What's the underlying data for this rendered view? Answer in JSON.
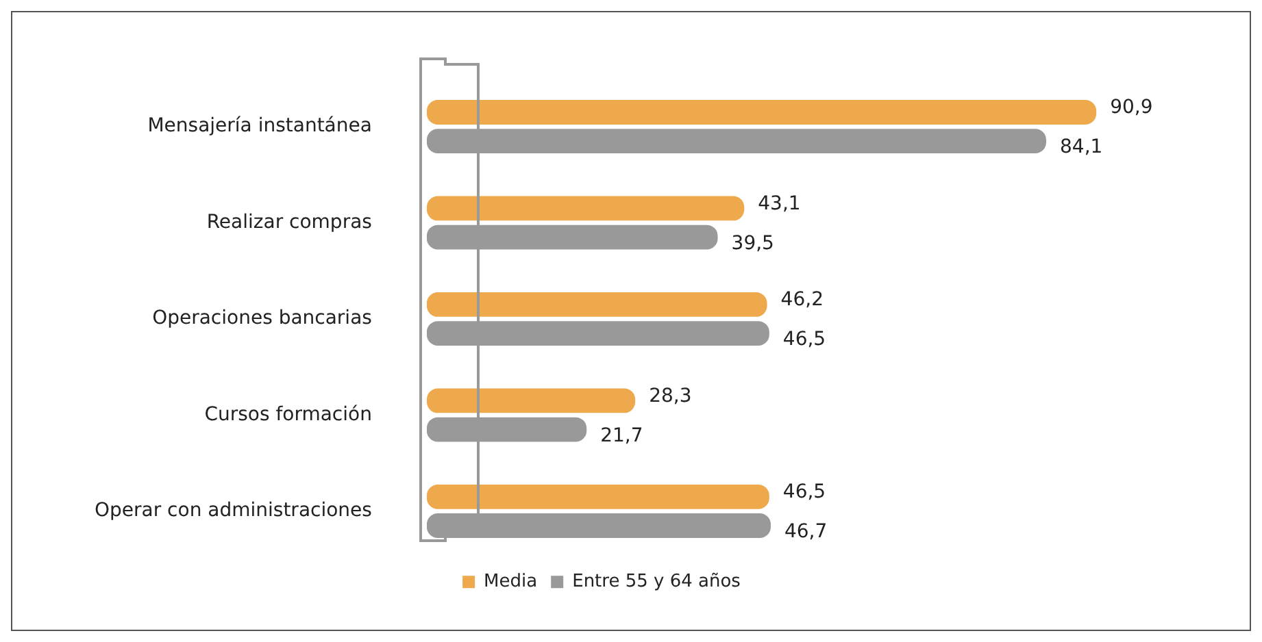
{
  "chart_data": {
    "type": "bar",
    "orientation": "horizontal",
    "categories": [
      "Mensajería instantánea",
      "Realizar compras",
      "Operaciones bancarias",
      "Cursos formación",
      "Operar con administraciones"
    ],
    "series": [
      {
        "name": "Media",
        "color": "#eea94c",
        "values": [
          90.9,
          43.1,
          46.2,
          28.3,
          46.5
        ],
        "value_labels": [
          "90,9",
          "43,1",
          "46,2",
          "28,3",
          "46,5"
        ]
      },
      {
        "name": "Entre 55 y 64 años",
        "color": "#999999",
        "values": [
          84.1,
          39.5,
          46.5,
          21.7,
          46.7
        ],
        "value_labels": [
          "84,1",
          "39,5",
          "46,5",
          "21,7",
          "46,7"
        ]
      }
    ],
    "legend": "bottom",
    "grid": false
  }
}
